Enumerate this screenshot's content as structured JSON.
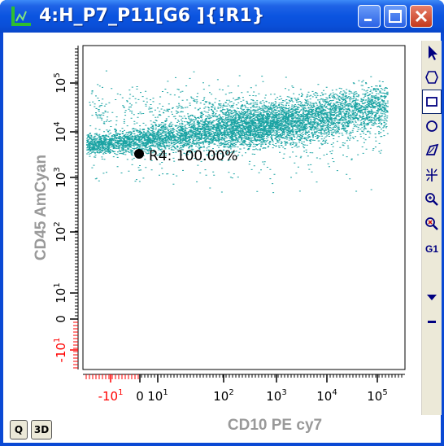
{
  "window": {
    "title": "4:H_P7_P11[G6 ]{!R1}",
    "title_color": "#ffffff",
    "titlebar_color": "#0a54e0"
  },
  "plot": {
    "x_axis_label": "CD10 PE cy7",
    "y_axis_label": "CD45 AmCyan",
    "x_ticks": [
      {
        "label": "-10",
        "sup": "1",
        "value": -10,
        "color": "#ff0000"
      },
      {
        "label": "0",
        "sup": "",
        "value": 0,
        "color": "#000000"
      },
      {
        "label": "10",
        "sup": "1",
        "value": 10,
        "color": "#000000"
      },
      {
        "label": "10",
        "sup": "2",
        "value": 100,
        "color": "#000000"
      },
      {
        "label": "10",
        "sup": "3",
        "value": 1000,
        "color": "#000000"
      },
      {
        "label": "10",
        "sup": "4",
        "value": 10000,
        "color": "#000000"
      },
      {
        "label": "10",
        "sup": "5",
        "value": 100000,
        "color": "#000000"
      }
    ],
    "y_ticks": [
      {
        "label": "-10",
        "sup": "1",
        "value": -10,
        "color": "#ff0000"
      },
      {
        "label": "0",
        "sup": "",
        "value": 0,
        "color": "#000000"
      },
      {
        "label": "10",
        "sup": "1",
        "value": 10,
        "color": "#000000"
      },
      {
        "label": "10",
        "sup": "2",
        "value": 100,
        "color": "#000000"
      },
      {
        "label": "10",
        "sup": "3",
        "value": 1000,
        "color": "#000000"
      },
      {
        "label": "10",
        "sup": "4",
        "value": 10000,
        "color": "#000000"
      },
      {
        "label": "10",
        "sup": "5",
        "value": 100000,
        "color": "#000000"
      }
    ],
    "dot_color": "#1aa3a3",
    "region_label": "R4: 100.00%",
    "negative_tick_color": "#ff0000",
    "axis_label_color": "#999999"
  },
  "toolbar": {
    "tools": [
      "pointer-icon",
      "ellipse-icon",
      "rectangle-icon",
      "circle-icon",
      "polygon-icon",
      "crosshair-icon",
      "zoom-in-icon",
      "zoom-out-icon",
      "gate-g1-icon",
      "dropdown-arrow-icon",
      "minus-icon"
    ],
    "g1_label": "G1"
  },
  "buttons": {
    "q_label": "Q",
    "three_d_label": "3D"
  }
}
